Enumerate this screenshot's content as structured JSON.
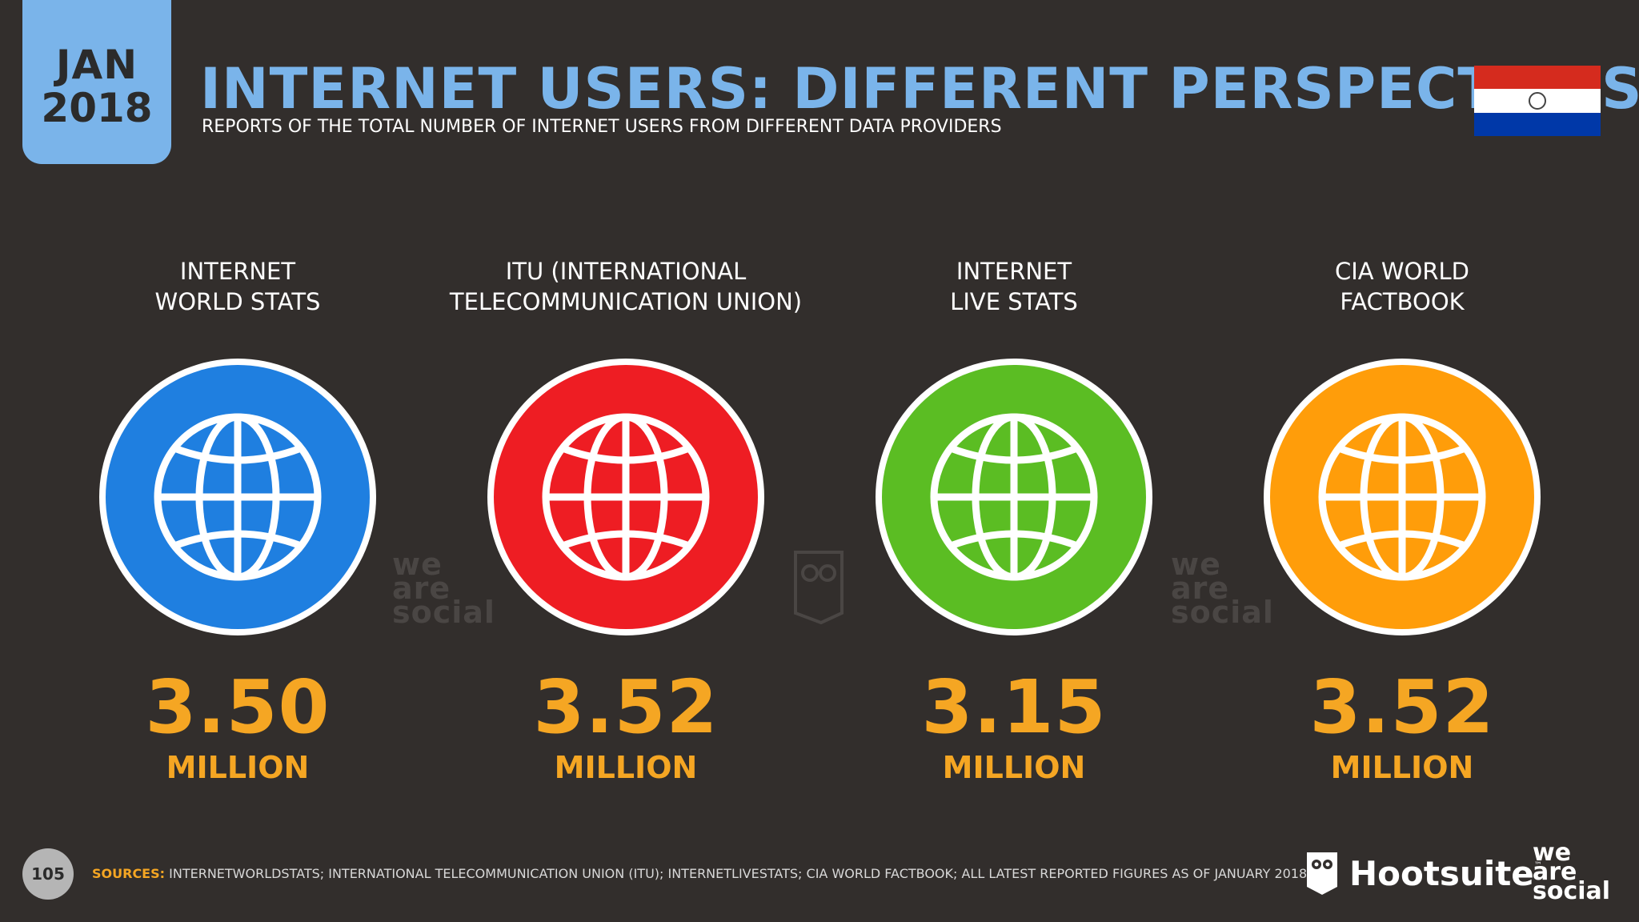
{
  "badge": {
    "month": "JAN",
    "year": "2018"
  },
  "header": {
    "title": "INTERNET USERS: DIFFERENT PERSPECTIVES",
    "subtitle": "REPORTS OF THE TOTAL NUMBER OF INTERNET USERS FROM DIFFERENT DATA PROVIDERS"
  },
  "flag": {
    "icon": "paraguay-flag-icon",
    "colors": [
      "#d52b1e",
      "#ffffff",
      "#0038a8"
    ]
  },
  "providers": [
    {
      "label": "INTERNET\nWORLD STATS",
      "value": "3.50",
      "unit": "MILLION",
      "color": "#1f7fe0",
      "icon": "globe-icon"
    },
    {
      "label": "ITU (INTERNATIONAL\nTELECOMMUNICATION UNION)",
      "value": "3.52",
      "unit": "MILLION",
      "color": "#ee1d23",
      "icon": "globe-icon"
    },
    {
      "label": "INTERNET\nLIVE STATS",
      "value": "3.15",
      "unit": "MILLION",
      "color": "#5bbd23",
      "icon": "globe-icon"
    },
    {
      "label": "CIA WORLD\nFACTBOOK",
      "value": "3.52",
      "unit": "MILLION",
      "color": "#ff9d0a",
      "icon": "globe-icon"
    }
  ],
  "watermarks": {
    "text": [
      "we",
      "are",
      "social"
    ]
  },
  "footer": {
    "page_number": "105",
    "sources_key": "SOURCES:",
    "sources_text": "INTERNETWORLDSTATS; INTERNATIONAL TELECOMMUNICATION UNION (ITU); INTERNETLIVESTATS; CIA WORLD FACTBOOK; ALL LATEST REPORTED FIGURES AS OF JANUARY 2018.",
    "hootsuite": "Hootsuite",
    "hootsuite_tm": "™",
    "we_are_social": [
      "we",
      "are",
      "social"
    ]
  }
}
